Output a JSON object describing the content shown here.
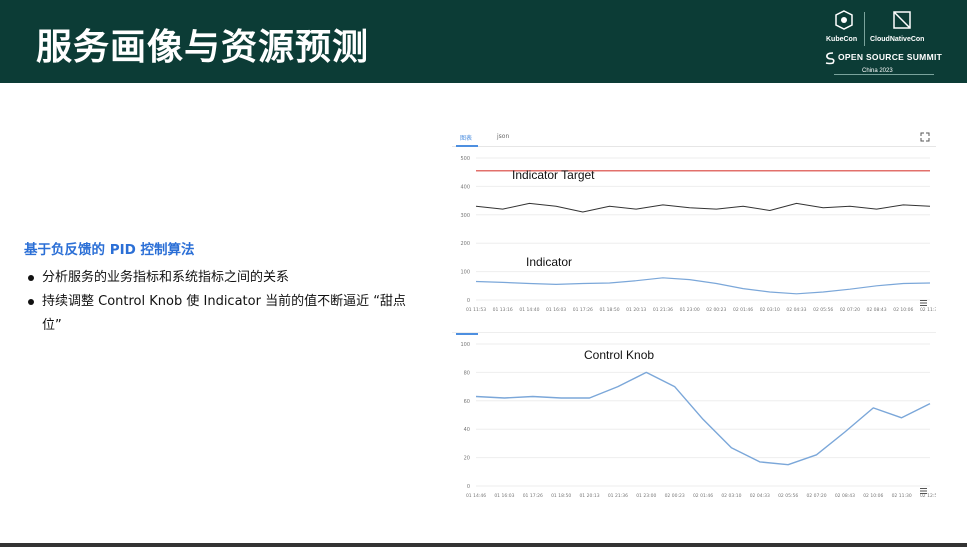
{
  "header": {
    "title": "服务画像与资源预测",
    "logo": {
      "kubecon": "KubeCon",
      "cloudnativecon": "CloudNativeCon",
      "summit": "OPEN SOURCE SUMMIT",
      "year": "China 2023"
    }
  },
  "content": {
    "heading": "基于负反馈的 PID 控制算法",
    "bullets": [
      "分析服务的业务指标和系统指标之间的关系",
      "持续调整 Control Knob 使 Indicator 当前的值不断逼近 “甜点位”"
    ]
  },
  "panel": {
    "tabs": [
      "图表",
      "json"
    ],
    "active_tab": 0
  },
  "colors": {
    "header_bg": "#0c3c36",
    "heading": "#2b6fd6",
    "target_line": "#d9403a",
    "indicator": "#333333",
    "knob": "#7ba7d9"
  },
  "icons": [
    "expand-icon",
    "menu-icon",
    "bullet-dot"
  ],
  "chart_data": [
    {
      "type": "line",
      "title": "",
      "annotations": [
        "Indicator Target",
        "Indicator"
      ],
      "ylim": [
        0,
        500
      ],
      "y_ticks": [
        "0",
        "100",
        "200",
        "300",
        "400",
        "500"
      ],
      "x_ticks": [
        "01 11:53",
        "01 13:16",
        "01 14:40",
        "01 16:03",
        "01 17:26",
        "01 18:50",
        "01 20:13",
        "01 21:36",
        "01 23:00",
        "02 00:23",
        "02 01:46",
        "02 03:10",
        "02 04:33",
        "02 05:56",
        "02 07:20",
        "02 08:43",
        "02 10:06",
        "02 11:30"
      ],
      "series": [
        {
          "values": [
            455,
            455,
            455,
            455,
            455,
            455,
            455,
            455,
            455,
            455,
            455,
            455,
            455,
            455,
            455,
            455,
            455,
            455
          ]
        },
        {
          "values": [
            330,
            320,
            340,
            330,
            310,
            330,
            320,
            335,
            325,
            320,
            330,
            315,
            340,
            325,
            330,
            320,
            335,
            330
          ]
        },
        {
          "values": [
            65,
            62,
            58,
            55,
            58,
            60,
            68,
            78,
            72,
            58,
            40,
            28,
            22,
            28,
            38,
            50,
            58,
            60
          ]
        }
      ]
    },
    {
      "type": "line",
      "title": "",
      "annotations": [
        "Control Knob"
      ],
      "ylim": [
        0,
        100
      ],
      "y_ticks": [
        "0",
        "20",
        "40",
        "60",
        "80",
        "100"
      ],
      "x_ticks": [
        "01 14:46",
        "01 16:03",
        "01 17:26",
        "01 18:50",
        "01 20:13",
        "01 21:36",
        "01 23:00",
        "02 00:23",
        "02 01:46",
        "02 03:10",
        "02 04:33",
        "02 05:56",
        "02 07:20",
        "02 08:43",
        "02 10:06",
        "02 11:30",
        "02 12:53"
      ],
      "series": [
        {
          "values": [
            63,
            62,
            63,
            62,
            62,
            70,
            80,
            70,
            47,
            27,
            17,
            15,
            22,
            38,
            55,
            48,
            58
          ]
        }
      ]
    }
  ]
}
